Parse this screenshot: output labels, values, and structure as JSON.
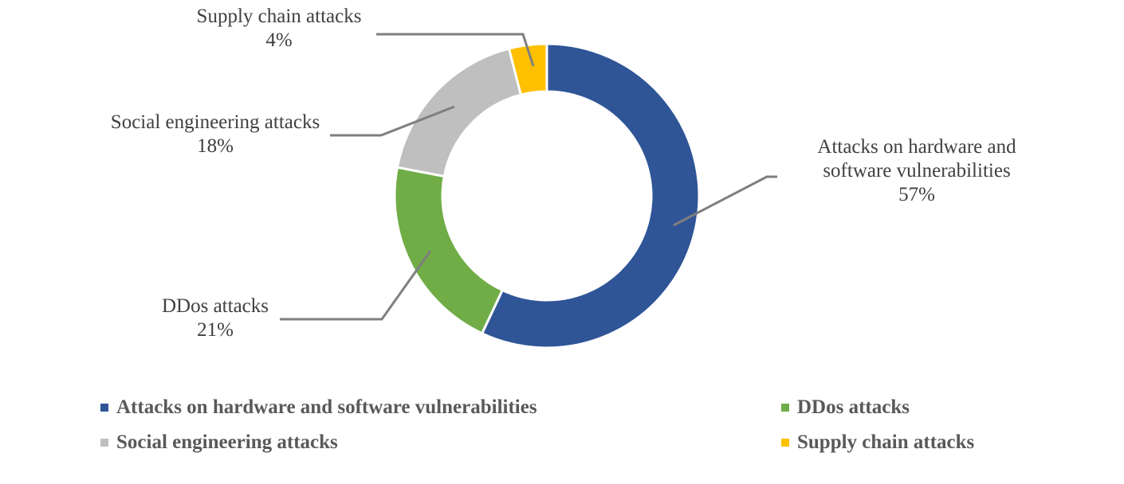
{
  "chart_data": {
    "type": "pie",
    "variant": "donut",
    "title": "",
    "categories": [
      "Attacks on hardware and software vulnerabilities",
      "DDos attacks",
      "Social engineering attacks",
      "Supply chain attacks"
    ],
    "values": [
      57,
      21,
      18,
      4
    ],
    "unit": "%",
    "colors": [
      "#2F5597",
      "#70AD47",
      "#BFBFBF",
      "#FFC000"
    ],
    "legend_position": "bottom",
    "data_labels": [
      {
        "name": "Attacks on hardware and software vulnerabilities",
        "line1": "Attacks on hardware and",
        "line2": "software vulnerabilities",
        "value": "57%"
      },
      {
        "name": "DDos attacks",
        "line1": "DDos attacks",
        "value": "21%"
      },
      {
        "name": "Social engineering attacks",
        "line1": "Social engineering attacks",
        "value": "18%"
      },
      {
        "name": "Supply chain attacks",
        "line1": "Supply chain attacks",
        "value": "4%"
      }
    ]
  },
  "legend": {
    "items": [
      {
        "label": "Attacks on hardware and software vulnerabilities",
        "color": "#2F5597"
      },
      {
        "label": "DDos attacks",
        "color": "#70AD47"
      },
      {
        "label": "Social engineering attacks",
        "color": "#BFBFBF"
      },
      {
        "label": "Supply chain attacks",
        "color": "#FFC000"
      }
    ]
  }
}
